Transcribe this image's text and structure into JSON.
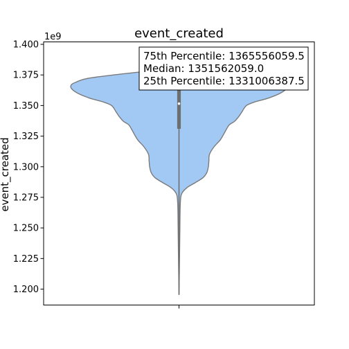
{
  "chart_data": {
    "type": "violin",
    "title": "event_created",
    "xlabel": "",
    "ylabel": "event_created",
    "y_offset_label": "1e9",
    "ylim": [
      1.187,
      1.402
    ],
    "yticks": [
      1.2,
      1.225,
      1.25,
      1.275,
      1.3,
      1.325,
      1.35,
      1.375,
      1.4
    ],
    "ytick_labels": [
      "1.200",
      "1.225",
      "1.250",
      "1.275",
      "1.300",
      "1.325",
      "1.350",
      "1.375",
      "1.400"
    ],
    "fill_color": "#a1c9f4",
    "edge_color": "#7a7a7a",
    "grid": false,
    "density_profile": {
      "y": [
        1.1955,
        1.22,
        1.25,
        1.27,
        1.278,
        1.283,
        1.287,
        1.291,
        1.295,
        1.3,
        1.305,
        1.31,
        1.316,
        1.322,
        1.328,
        1.334,
        1.337,
        1.341,
        1.345,
        1.35,
        1.353,
        1.356,
        1.36,
        1.364,
        1.367,
        1.369,
        1.372,
        1.375,
        1.378,
        1.381
      ],
      "half_width": [
        0.0,
        0.004,
        0.008,
        0.012,
        0.025,
        0.075,
        0.15,
        0.22,
        0.255,
        0.27,
        0.275,
        0.28,
        0.32,
        0.38,
        0.42,
        0.46,
        0.51,
        0.55,
        0.58,
        0.62,
        0.7,
        0.82,
        0.93,
        0.99,
        0.99,
        0.95,
        0.85,
        0.6,
        0.3,
        0.0
      ]
    },
    "quartiles": {
      "q1": 1.331006387,
      "median": 1.351562059,
      "q3": 1.365556059
    },
    "annotation": {
      "position": "top-right",
      "lines": [
        "75th Percentile: 1365556059.5",
        "Median: 1351562059.0",
        "25th Percentile: 1331006387.5"
      ]
    }
  }
}
